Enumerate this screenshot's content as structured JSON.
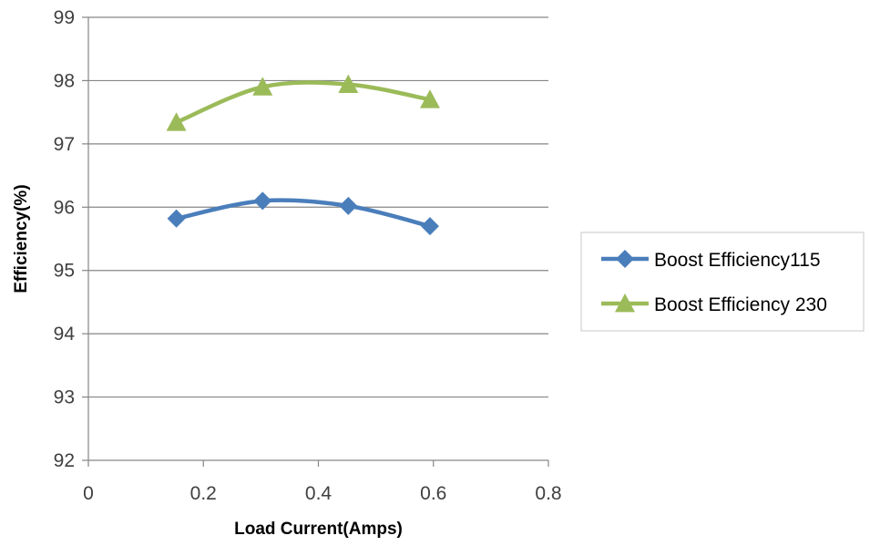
{
  "chart_data": {
    "type": "line",
    "title": "",
    "xlabel": "Load Current(Amps)",
    "ylabel": "Efficiency(%)",
    "xlim": [
      0,
      0.8
    ],
    "ylim": [
      92,
      99
    ],
    "xticks": [
      0,
      0.2,
      0.4,
      0.6,
      0.8
    ],
    "xtick_labels": [
      "0",
      "0.2",
      "0.4",
      "0.6",
      "0.8"
    ],
    "yticks": [
      92,
      93,
      94,
      95,
      96,
      97,
      98,
      99
    ],
    "ytick_labels": [
      "92",
      "93",
      "94",
      "95",
      "96",
      "97",
      "98",
      "99"
    ],
    "grid": "horizontal",
    "legend_position": "right",
    "smooth": true,
    "series": [
      {
        "name": "Boost Efficiency115",
        "color": "#4A7EBB",
        "marker": "diamond",
        "x": [
          0.153,
          0.303,
          0.452,
          0.594
        ],
        "y": [
          95.82,
          96.1,
          96.02,
          95.7
        ]
      },
      {
        "name": "Boost Efficiency 230",
        "color": "#9BBB59",
        "marker": "triangle",
        "x": [
          0.153,
          0.303,
          0.452,
          0.594
        ],
        "y": [
          97.34,
          97.9,
          97.94,
          97.7
        ]
      }
    ]
  }
}
